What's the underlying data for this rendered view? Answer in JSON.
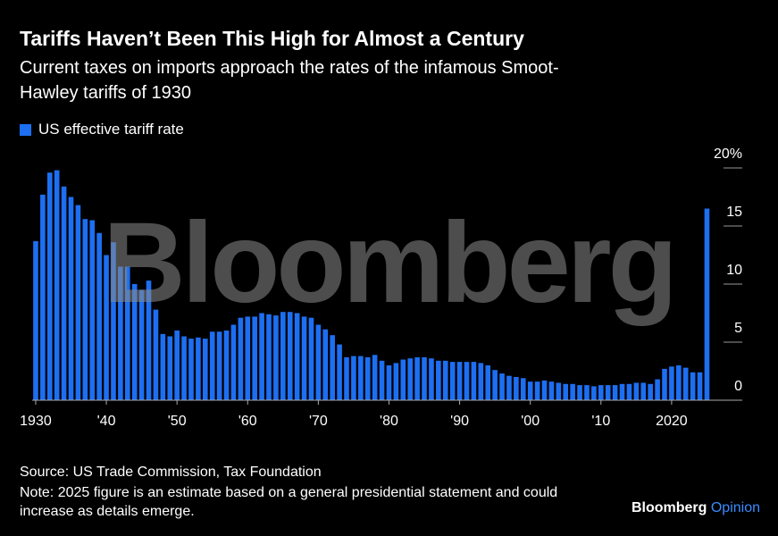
{
  "chart_data": {
    "type": "bar",
    "title": "Tariffs Haven’t Been This High for Almost a Century",
    "subtitle": "Current taxes on imports approach the rates of the infamous Smoot-Hawley tariffs of 1930",
    "watermark": "Bloomberg",
    "source": "Source: US Trade Commission, Tax Foundation",
    "note": "Note: 2025 figure is an estimate based on a general presidential statement and could increase as details emerge.",
    "brand": [
      "Bloomberg",
      "Opinion"
    ],
    "x": [
      1930,
      1931,
      1932,
      1933,
      1934,
      1935,
      1936,
      1937,
      1938,
      1939,
      1940,
      1941,
      1942,
      1943,
      1944,
      1945,
      1946,
      1947,
      1948,
      1949,
      1950,
      1951,
      1952,
      1953,
      1954,
      1955,
      1956,
      1957,
      1958,
      1959,
      1960,
      1961,
      1962,
      1963,
      1964,
      1965,
      1966,
      1967,
      1968,
      1969,
      1970,
      1971,
      1972,
      1973,
      1974,
      1975,
      1976,
      1977,
      1978,
      1979,
      1980,
      1981,
      1982,
      1983,
      1984,
      1985,
      1986,
      1987,
      1988,
      1989,
      1990,
      1991,
      1992,
      1993,
      1994,
      1995,
      1996,
      1997,
      1998,
      1999,
      2000,
      2001,
      2002,
      2003,
      2004,
      2005,
      2006,
      2007,
      2008,
      2009,
      2010,
      2011,
      2012,
      2013,
      2014,
      2015,
      2016,
      2017,
      2018,
      2019,
      2020,
      2021,
      2022,
      2023,
      2024,
      2025
    ],
    "series": [
      {
        "name": "US effective tariff rate",
        "color": "#1d6ff2",
        "values": [
          13.7,
          17.7,
          19.6,
          19.8,
          18.4,
          17.5,
          16.8,
          15.6,
          15.5,
          14.4,
          12.5,
          13.6,
          11.5,
          11.5,
          10.0,
          9.5,
          10.3,
          7.8,
          5.7,
          5.5,
          6.0,
          5.5,
          5.3,
          5.4,
          5.3,
          5.9,
          5.9,
          6.0,
          6.5,
          7.1,
          7.2,
          7.2,
          7.5,
          7.4,
          7.3,
          7.6,
          7.6,
          7.5,
          7.2,
          7.1,
          6.5,
          6.1,
          5.6,
          4.8,
          3.7,
          3.8,
          3.8,
          3.7,
          3.9,
          3.4,
          3.0,
          3.2,
          3.5,
          3.6,
          3.7,
          3.7,
          3.6,
          3.4,
          3.4,
          3.3,
          3.3,
          3.3,
          3.3,
          3.2,
          3.0,
          2.6,
          2.3,
          2.1,
          2.0,
          1.9,
          1.6,
          1.6,
          1.7,
          1.6,
          1.5,
          1.4,
          1.4,
          1.3,
          1.3,
          1.2,
          1.3,
          1.3,
          1.3,
          1.4,
          1.4,
          1.5,
          1.5,
          1.4,
          1.8,
          2.7,
          2.9,
          3.0,
          2.8,
          2.4,
          2.4,
          16.5
        ]
      }
    ],
    "xlim": [
      1929.5,
      2030
    ],
    "xticks": [
      {
        "value": 1930,
        "label": "1930"
      },
      {
        "value": 1940,
        "label": "'40"
      },
      {
        "value": 1950,
        "label": "'50"
      },
      {
        "value": 1960,
        "label": "'60"
      },
      {
        "value": 1970,
        "label": "'70"
      },
      {
        "value": 1980,
        "label": "'80"
      },
      {
        "value": 1990,
        "label": "'90"
      },
      {
        "value": 2000,
        "label": "'00"
      },
      {
        "value": 2010,
        "label": "'10"
      },
      {
        "value": 2020,
        "label": "2020"
      }
    ],
    "ylim": [
      0,
      20
    ],
    "yticks": [
      0,
      5,
      10,
      15,
      {
        "value": 20,
        "label": "20%"
      }
    ]
  }
}
